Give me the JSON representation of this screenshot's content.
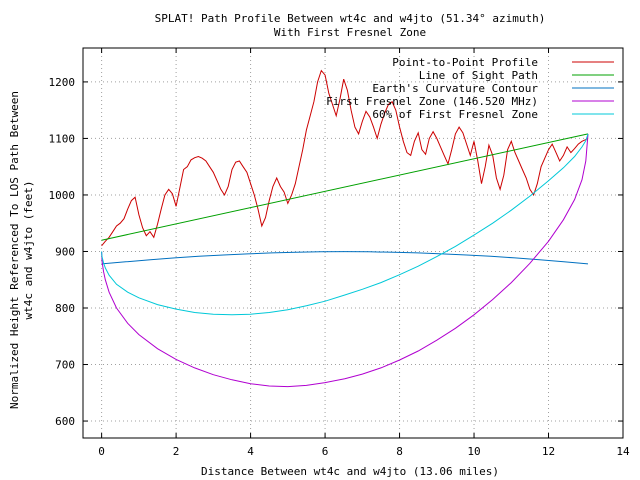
{
  "chart_data": {
    "type": "line",
    "title": "SPLAT! Path Profile Between wt4c and w4jto (51.34° azimuth)",
    "subtitle": "With First Fresnel Zone",
    "xlabel": "Distance Between wt4c and w4jto (13.06 miles)",
    "ylabel_line1": "Normalized Height Referenced To LOS Path Between",
    "ylabel_line2": "wt4c and w4jto (feet)",
    "xlim": [
      -0.5,
      14
    ],
    "ylim": [
      570,
      1260
    ],
    "xticks": [
      0,
      2,
      4,
      6,
      8,
      10,
      12,
      14
    ],
    "yticks": [
      600,
      700,
      800,
      900,
      1000,
      1100,
      1200
    ],
    "grid": true,
    "legend_position": "top-right",
    "series": [
      {
        "name": "Point-to-Point Profile",
        "color": "#cc0000",
        "x": [
          0,
          0.1,
          0.2,
          0.3,
          0.4,
          0.5,
          0.6,
          0.7,
          0.8,
          0.9,
          1.0,
          1.1,
          1.2,
          1.3,
          1.4,
          1.5,
          1.6,
          1.7,
          1.8,
          1.9,
          2.0,
          2.1,
          2.2,
          2.3,
          2.4,
          2.5,
          2.6,
          2.7,
          2.8,
          2.9,
          3.0,
          3.1,
          3.2,
          3.3,
          3.4,
          3.5,
          3.6,
          3.7,
          3.8,
          3.9,
          4.0,
          4.1,
          4.2,
          4.3,
          4.4,
          4.5,
          4.6,
          4.7,
          4.8,
          4.9,
          5.0,
          5.1,
          5.2,
          5.3,
          5.4,
          5.5,
          5.6,
          5.7,
          5.8,
          5.9,
          6.0,
          6.1,
          6.2,
          6.3,
          6.4,
          6.5,
          6.6,
          6.7,
          6.8,
          6.9,
          7.0,
          7.1,
          7.2,
          7.3,
          7.4,
          7.5,
          7.6,
          7.7,
          7.8,
          7.9,
          8.0,
          8.1,
          8.2,
          8.3,
          8.4,
          8.5,
          8.6,
          8.7,
          8.8,
          8.9,
          9.0,
          9.1,
          9.2,
          9.3,
          9.4,
          9.5,
          9.6,
          9.7,
          9.8,
          9.9,
          10.0,
          10.1,
          10.2,
          10.3,
          10.4,
          10.5,
          10.6,
          10.7,
          10.8,
          10.9,
          11.0,
          11.1,
          11.2,
          11.3,
          11.4,
          11.5,
          11.6,
          11.7,
          11.8,
          11.9,
          12.0,
          12.1,
          12.2,
          12.3,
          12.4,
          12.5,
          12.6,
          12.7,
          12.8,
          12.9,
          13.0,
          13.06
        ],
        "values": [
          910,
          918,
          925,
          935,
          945,
          950,
          958,
          975,
          990,
          996,
          965,
          942,
          928,
          935,
          925,
          948,
          975,
          1000,
          1010,
          1002,
          980,
          1012,
          1045,
          1050,
          1062,
          1066,
          1068,
          1065,
          1060,
          1050,
          1040,
          1025,
          1010,
          1000,
          1015,
          1045,
          1058,
          1060,
          1050,
          1040,
          1020,
          1000,
          975,
          945,
          960,
          990,
          1015,
          1030,
          1015,
          1005,
          985,
          1000,
          1020,
          1050,
          1080,
          1115,
          1140,
          1165,
          1200,
          1220,
          1212,
          1180,
          1160,
          1140,
          1170,
          1205,
          1185,
          1150,
          1120,
          1108,
          1130,
          1148,
          1138,
          1120,
          1100,
          1125,
          1145,
          1160,
          1165,
          1150,
          1120,
          1095,
          1075,
          1070,
          1095,
          1110,
          1080,
          1072,
          1100,
          1112,
          1100,
          1085,
          1070,
          1055,
          1080,
          1108,
          1120,
          1110,
          1090,
          1070,
          1095,
          1060,
          1020,
          1050,
          1088,
          1070,
          1030,
          1010,
          1035,
          1080,
          1095,
          1075,
          1060,
          1045,
          1030,
          1010,
          1000,
          1020,
          1050,
          1065,
          1080,
          1090,
          1075,
          1060,
          1070,
          1085,
          1075,
          1082,
          1090,
          1095,
          1098,
          1100
        ]
      },
      {
        "name": "Line of Sight Path",
        "color": "#00a000",
        "x": [
          0,
          13.06
        ],
        "values": [
          920,
          1108
        ]
      },
      {
        "name": "Earth's Curvature Contour",
        "color": "#0070c0",
        "x": [
          0,
          0.65,
          1.31,
          1.96,
          2.61,
          3.27,
          3.92,
          4.57,
          5.22,
          5.88,
          6.53,
          7.18,
          7.84,
          8.49,
          9.14,
          9.8,
          10.45,
          11.1,
          11.76,
          12.41,
          13.06
        ],
        "values": [
          878,
          881.8,
          885.4,
          888.6,
          891.4,
          893.8,
          895.8,
          897.4,
          898.6,
          899.4,
          899.7,
          899.4,
          898.6,
          897.4,
          895.8,
          893.8,
          891.4,
          888.6,
          885.4,
          881.8,
          878
        ]
      },
      {
        "name": "First Fresnel Zone (146.520 MHz)",
        "color": "#b000d0",
        "x": [
          0,
          0.01,
          0.05,
          0.1,
          0.2,
          0.4,
          0.7,
          1.0,
          1.5,
          2.0,
          2.5,
          3.0,
          3.5,
          4.0,
          4.5,
          5.0,
          5.5,
          6.0,
          6.53,
          7.0,
          7.5,
          8.0,
          8.5,
          9.0,
          9.5,
          10.0,
          10.5,
          11.0,
          11.5,
          12.0,
          12.4,
          12.7,
          12.9,
          13.0,
          13.06
        ],
        "values": [
          900,
          883,
          865,
          850,
          828,
          800,
          773,
          753,
          728,
          709,
          694,
          682,
          673,
          666,
          662,
          661,
          663,
          668,
          675,
          683,
          694,
          708,
          724,
          743,
          764,
          788,
          815,
          845,
          879,
          918,
          956,
          992,
          1027,
          1060,
          1108
        ]
      },
      {
        "name": "60% of First Fresnel Zone",
        "color": "#00c8d8",
        "x": [
          0,
          0.01,
          0.05,
          0.1,
          0.2,
          0.4,
          0.7,
          1.0,
          1.5,
          2.0,
          2.5,
          3.0,
          3.5,
          4.0,
          4.5,
          5.0,
          5.5,
          6.0,
          6.53,
          7.0,
          7.5,
          8.0,
          8.5,
          9.0,
          9.5,
          10.0,
          10.5,
          11.0,
          11.5,
          12.0,
          12.4,
          12.7,
          12.9,
          13.0,
          13.06
        ],
        "values": [
          900,
          891,
          880,
          871,
          858,
          842,
          828,
          818,
          806,
          798,
          792,
          789,
          788,
          789,
          792,
          797,
          804,
          812,
          823,
          833,
          845,
          859,
          874,
          891,
          909,
          929,
          950,
          973,
          998,
          1025,
          1048,
          1068,
          1085,
          1096,
          1108
        ]
      }
    ]
  }
}
